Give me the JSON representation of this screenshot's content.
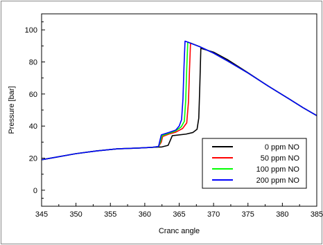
{
  "chart_data": {
    "type": "line",
    "title": "",
    "xlabel": "Cranc angle",
    "ylabel": "Pressure [bar]",
    "xlim": [
      345,
      385
    ],
    "ylim": [
      -10,
      110
    ],
    "xticks": [
      345,
      350,
      355,
      360,
      365,
      370,
      375,
      380,
      385
    ],
    "yticks": [
      0,
      20,
      40,
      60,
      80,
      100
    ],
    "grid": false,
    "legend_position": "bottom-right",
    "series": [
      {
        "name": "0 ppm NO",
        "color": "#000000",
        "x": [
          345,
          347,
          350,
          353,
          356,
          359,
          361,
          362.5,
          363.4,
          363.8,
          364,
          366,
          367,
          367.6,
          367.85,
          368.0,
          368.15,
          370,
          372,
          375,
          378,
          381,
          383,
          385
        ],
        "y": [
          19,
          20.5,
          22.8,
          24.5,
          25.8,
          26.3,
          26.7,
          27,
          28,
          32,
          34,
          35,
          36,
          38,
          45,
          65,
          88.5,
          86.1,
          81.5,
          73.3,
          64.8,
          56.9,
          51.5,
          46.5
        ]
      },
      {
        "name": "50 ppm NO",
        "color": "#ff0000",
        "x": [
          345,
          347,
          350,
          353,
          356,
          359,
          361,
          362,
          362.4,
          362.6,
          363.5,
          364.5,
          365.5,
          366.1,
          366.35,
          366.5,
          366.65,
          368,
          370,
          372,
          375,
          378,
          381,
          383,
          385
        ],
        "y": [
          19,
          20.5,
          22.8,
          24.5,
          25.8,
          26.3,
          26.7,
          27.2,
          30,
          33.5,
          35,
          36.2,
          38.5,
          42,
          55,
          75,
          91.8,
          89.5,
          85.5,
          80.7,
          73.1,
          64.8,
          56.9,
          51.5,
          46.5
        ]
      },
      {
        "name": "100 ppm NO",
        "color": "#00ff00",
        "x": [
          345,
          347,
          350,
          353,
          356,
          359,
          361,
          362,
          362.3,
          362.5,
          363.5,
          364.5,
          365.3,
          365.75,
          365.95,
          366.1,
          366.25,
          368,
          370,
          372,
          375,
          378,
          381,
          383,
          385
        ],
        "y": [
          19,
          20.5,
          22.8,
          24.5,
          25.8,
          26.3,
          26.7,
          27.2,
          30.5,
          34,
          35.5,
          37,
          39.5,
          43,
          56,
          76,
          92.4,
          89.5,
          85.5,
          80.7,
          73.1,
          64.8,
          56.9,
          51.5,
          46.5
        ]
      },
      {
        "name": "200 ppm NO",
        "color": "#0000ff",
        "x": [
          345,
          347,
          350,
          353,
          356,
          359,
          361,
          362,
          362.2,
          362.4,
          363.5,
          364.5,
          365,
          365.35,
          365.55,
          365.7,
          365.85,
          368,
          370,
          372,
          375,
          378,
          381,
          383,
          385
        ],
        "y": [
          19,
          20.5,
          22.8,
          24.5,
          25.8,
          26.3,
          26.7,
          27.3,
          31,
          34.5,
          36,
          37.5,
          40,
          44,
          57,
          77,
          93,
          89.5,
          85.5,
          80.7,
          73.1,
          64.8,
          56.9,
          51.5,
          46.5
        ]
      }
    ]
  }
}
